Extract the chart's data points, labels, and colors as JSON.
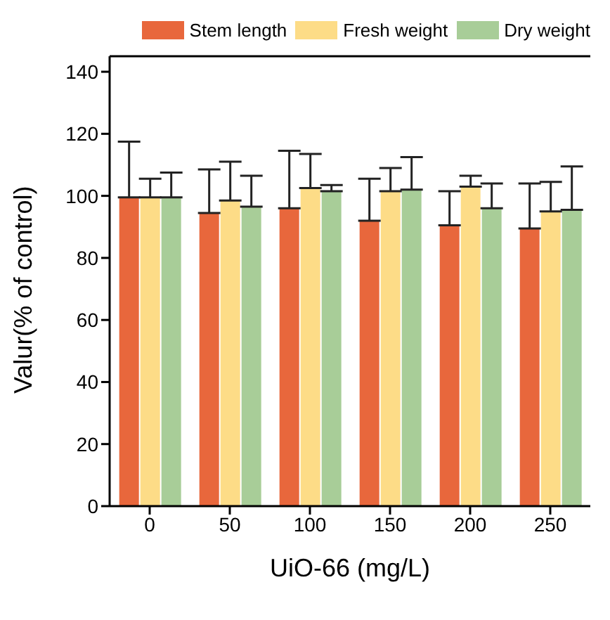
{
  "chart_data": {
    "type": "bar",
    "xlabel": "UiO-66 (mg/L)",
    "ylabel": "Valur(% of control)",
    "categories": [
      "0",
      "50",
      "100",
      "150",
      "200",
      "250"
    ],
    "series": [
      {
        "name": "Stem length",
        "color": "#e8673c",
        "values": [
          99.5,
          94.5,
          96,
          92,
          90.5,
          89.5
        ],
        "errors": [
          [
            99.5,
            117.5
          ],
          [
            94.5,
            108.5
          ],
          [
            96,
            114.5
          ],
          [
            92,
            105.5
          ],
          [
            90.5,
            101.5
          ],
          [
            89.5,
            104
          ]
        ]
      },
      {
        "name": "Fresh weight",
        "color": "#fddc87",
        "values": [
          99.5,
          98.5,
          102.5,
          101.5,
          103,
          95
        ],
        "errors": [
          [
            99.5,
            105.5
          ],
          [
            98.5,
            111
          ],
          [
            102.5,
            113.5
          ],
          [
            101.5,
            109
          ],
          [
            103,
            106.5
          ],
          [
            95,
            104.5
          ]
        ]
      },
      {
        "name": "Dry weight",
        "color": "#a8cd98",
        "values": [
          99.5,
          96.5,
          101.5,
          102,
          96,
          95.5
        ],
        "errors": [
          [
            99.5,
            107.5
          ],
          [
            96.5,
            106.5
          ],
          [
            101.5,
            103.5
          ],
          [
            102,
            112.5
          ],
          [
            96,
            104
          ],
          [
            95.5,
            109.5
          ]
        ]
      }
    ],
    "ylim": [
      0,
      145
    ],
    "yticks": [
      0,
      20,
      40,
      60,
      80,
      100,
      120,
      140
    ],
    "legend": "top"
  }
}
